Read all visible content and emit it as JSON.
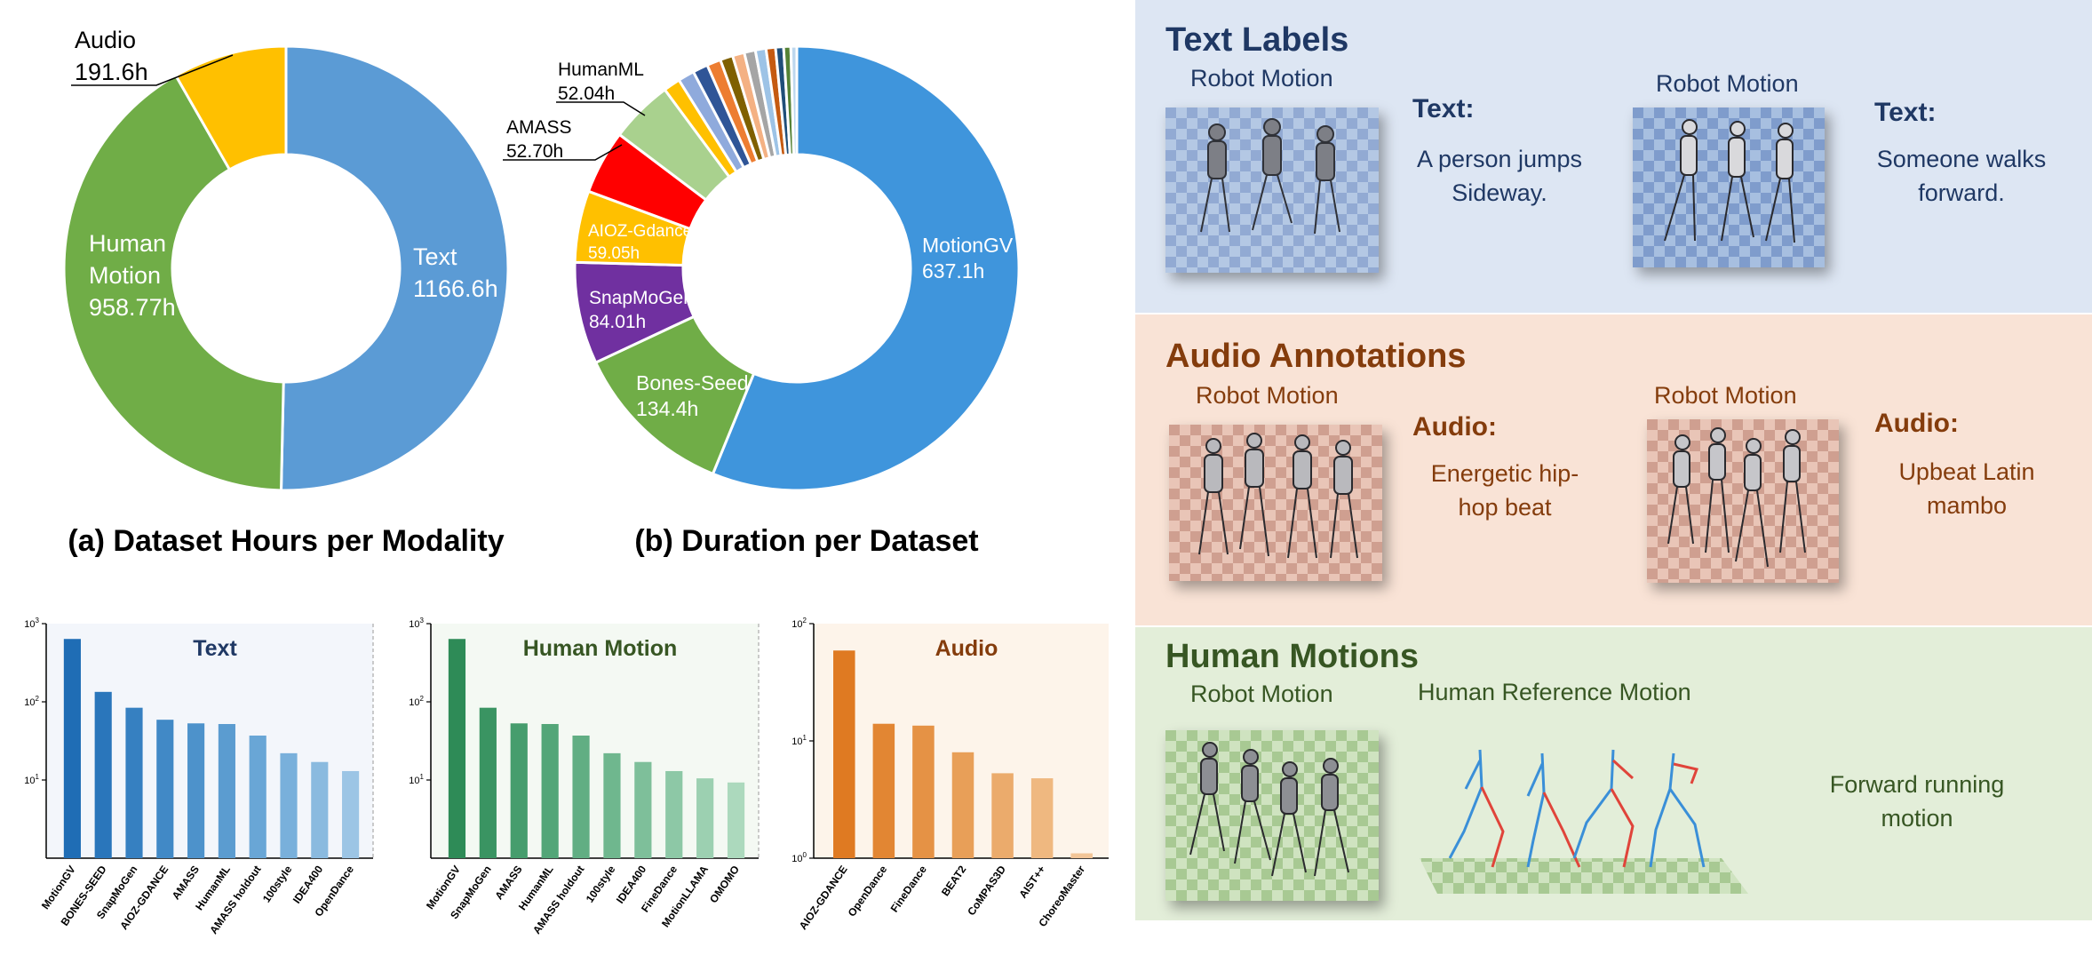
{
  "chart_data": [
    {
      "type": "pie",
      "title": "(a) Dataset Hours per Modality",
      "slices": [
        {
          "label": "Text",
          "value": 1166.6,
          "value_label": "1166.6h",
          "color": "#5b9bd5"
        },
        {
          "label": "Human Motion",
          "value": 958.77,
          "value_label": "958.77h",
          "color": "#70ad47"
        },
        {
          "label": "Audio",
          "value": 191.6,
          "value_label": "191.6h",
          "color": "#ffc000"
        }
      ]
    },
    {
      "type": "pie",
      "title": "(b) Duration per Dataset",
      "slices": [
        {
          "label": "MotionGV",
          "value": 637.1,
          "value_label": "637.1h",
          "color": "#3f95dc"
        },
        {
          "label": "Bones-Seed",
          "value": 134.4,
          "value_label": "134.4h",
          "color": "#70ad47"
        },
        {
          "label": "SnapMoGen",
          "value": 84.01,
          "value_label": "84.01h",
          "color": "#7030a0"
        },
        {
          "label": "AIOZ-Gdance",
          "value": 59.05,
          "value_label": "59.05h",
          "color": "#ffc000"
        },
        {
          "label": "AMASS",
          "value": 52.7,
          "value_label": "52.70h",
          "color": "#ff0000"
        },
        {
          "label": "HumanML",
          "value": 52.04,
          "value_label": "52.04h",
          "color": "#a9d18e"
        },
        {
          "label": "",
          "value": 13.9,
          "value_label": "",
          "color": "#ffc000"
        },
        {
          "label": "",
          "value": 13.5,
          "value_label": "",
          "color": "#8faadc"
        },
        {
          "label": "",
          "value": 12.5,
          "value_label": "",
          "color": "#2f5597"
        },
        {
          "label": "",
          "value": 11.5,
          "value_label": "",
          "color": "#ed7d31"
        },
        {
          "label": "",
          "value": 10.5,
          "value_label": "",
          "color": "#7f6000"
        },
        {
          "label": "",
          "value": 9.8,
          "value_label": "",
          "color": "#f4b183"
        },
        {
          "label": "",
          "value": 9.2,
          "value_label": "",
          "color": "#a5a5a5"
        },
        {
          "label": "",
          "value": 8.8,
          "value_label": "",
          "color": "#9dc3e6"
        },
        {
          "label": "",
          "value": 7.8,
          "value_label": "",
          "color": "#c55a11"
        },
        {
          "label": "",
          "value": 6.6,
          "value_label": "",
          "color": "#1f4e79"
        },
        {
          "label": "",
          "value": 5.9,
          "value_label": "",
          "color": "#548235"
        },
        {
          "label": "",
          "value": 4.9,
          "value_label": "",
          "color": "#bdd7ee"
        }
      ]
    },
    {
      "type": "bar",
      "title": "Text",
      "yscale": "log",
      "ylim": [
        1,
        1000
      ],
      "yticks": [
        {
          "v": 10,
          "base": "10",
          "exp": "1"
        },
        {
          "v": 100,
          "base": "10",
          "exp": "2"
        },
        {
          "v": 1000,
          "base": "10",
          "exp": "3"
        }
      ],
      "categories": [
        "MotionGV",
        "BONES-SEED",
        "SnapMoGen",
        "AIOZ-GDANCE",
        "AMASS",
        "HumanML",
        "AMASS holdout",
        "100style",
        "IDEA400",
        "OpenDance"
      ],
      "values": [
        637,
        134,
        84,
        59,
        53,
        52,
        37,
        22,
        17,
        13
      ],
      "colors": [
        "#1f6db5",
        "#2a76bb",
        "#3680c1",
        "#4189c6",
        "#4d92cb",
        "#5b9cd0",
        "#69a6d6",
        "#79b0db",
        "#8abadf",
        "#9cc5e5"
      ]
    },
    {
      "type": "bar",
      "title": "Human Motion",
      "yscale": "log",
      "ylim": [
        1,
        1000
      ],
      "yticks": [
        {
          "v": 10,
          "base": "10",
          "exp": "1"
        },
        {
          "v": 100,
          "base": "10",
          "exp": "2"
        },
        {
          "v": 1000,
          "base": "10",
          "exp": "3"
        }
      ],
      "categories": [
        "MotionGV",
        "SnapMoGen",
        "AMASS",
        "HumanML",
        "AMASS holdout",
        "100style",
        "IDEA400",
        "FineDance",
        "MotionLLAMA",
        "OMOMO"
      ],
      "values": [
        637,
        84,
        53,
        52,
        37,
        22,
        17,
        13,
        10.5,
        9.3
      ],
      "colors": [
        "#2e8b57",
        "#3a9462",
        "#469d6d",
        "#53a678",
        "#61ae83",
        "#6fb78e",
        "#7ebf9a",
        "#8dc8a6",
        "#9cd0b1",
        "#acd9bd"
      ]
    },
    {
      "type": "bar",
      "title": "Audio",
      "yscale": "log",
      "ylim": [
        1,
        100
      ],
      "yticks": [
        {
          "v": 1,
          "base": "10",
          "exp": "0"
        },
        {
          "v": 10,
          "base": "10",
          "exp": "1"
        },
        {
          "v": 100,
          "base": "10",
          "exp": "2"
        }
      ],
      "categories": [
        "AIOZ-GDANCE",
        "OpenDance",
        "FineDance",
        "BEAT2",
        "CoMPAS3D",
        "AIST++",
        "ChoreoMaster"
      ],
      "values": [
        59,
        14,
        13.5,
        8,
        5.3,
        4.8,
        1.1
      ],
      "colors": [
        "#df7a22",
        "#e28633",
        "#e59245",
        "#e89f58",
        "#ebab6c",
        "#efb880",
        "#f2c598"
      ]
    }
  ],
  "panels": {
    "text": {
      "title": "Text Labels",
      "caption_left": "Robot Motion",
      "caption_right": "Robot Motion",
      "label_left": "Text:",
      "label_right": "Text:",
      "desc_left_1": "A person jumps",
      "desc_left_2": "Sideway.",
      "desc_right_1": "Someone walks",
      "desc_right_2": "forward."
    },
    "audio": {
      "title": "Audio Annotations",
      "caption_left": "Robot Motion",
      "caption_right": "Robot Motion",
      "label_left": "Audio:",
      "label_right": "Audio:",
      "desc_left_1": "Energetic hip-",
      "desc_left_2": "hop beat",
      "desc_right_1": "Upbeat Latin",
      "desc_right_2": "mambo"
    },
    "human": {
      "title": "Human Motions",
      "caption_left": "Robot Motion",
      "caption_right": "Human Reference Motion",
      "desc_1": "Forward running",
      "desc_2": "motion"
    }
  },
  "colors": {
    "text_panel_bg": "#dde6f3",
    "audio_panel_bg": "#f9e3d6",
    "human_panel_bg": "#e3eed9",
    "text_title": "#1f3864",
    "audio_title": "#843c0c",
    "human_title": "#375623"
  }
}
